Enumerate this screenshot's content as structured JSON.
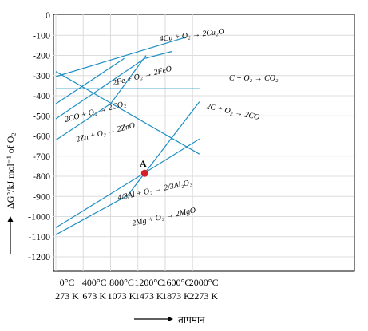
{
  "chart_data": {
    "type": "line",
    "title": "",
    "ylabel": "ΔG°/kJ mol⁻¹ of O₂",
    "xlabel": "तापमान",
    "ylim": [
      -1300,
      0
    ],
    "y_ticks": [
      0,
      -100,
      -200,
      -300,
      -400,
      -500,
      -600,
      -700,
      -800,
      -900,
      -1000,
      -1100,
      -1200
    ],
    "xlim": [
      0,
      2100
    ],
    "x_ticks": [
      {
        "x": 0,
        "celsius": "0°C",
        "kelvin": "273 K"
      },
      {
        "x": 400,
        "celsius": "400°C",
        "kelvin": "673 K"
      },
      {
        "x": 800,
        "celsius": "800°C",
        "kelvin": "1073 K"
      },
      {
        "x": 1200,
        "celsius": "1200°C",
        "kelvin": "1473 K"
      },
      {
        "x": 1600,
        "celsius": "1600°C",
        "kelvin": "1873 K"
      },
      {
        "x": 2000,
        "celsius": "2000°C",
        "kelvin": "2273 K"
      }
    ],
    "grid": true,
    "series": [
      {
        "name": "4Cu + O₂ → 2Cu₂O",
        "points": [
          [
            0,
            -305
          ],
          [
            1900,
            -110
          ]
        ]
      },
      {
        "name": "2Fe + O₂ → 2FeO",
        "points": [
          [
            0,
            -440
          ],
          [
            1000,
            -215
          ]
        ]
      },
      {
        "name": "C + O₂ → CO₂",
        "points": [
          [
            0,
            -365
          ],
          [
            2100,
            -365
          ]
        ]
      },
      {
        "name": "2CO + O₂ → 2CO₂",
        "points": [
          [
            0,
            -515
          ],
          [
            1300,
            -215
          ],
          [
            1700,
            -180
          ]
        ]
      },
      {
        "name": "2C + O₂ → 2CO",
        "points": [
          [
            0,
            -280
          ],
          [
            2100,
            -690
          ]
        ]
      },
      {
        "name": "2Zn + O₂ → 2ZnO",
        "points": [
          [
            0,
            -620
          ],
          [
            800,
            -440
          ],
          [
            1320,
            -200
          ]
        ]
      },
      {
        "name": "4/3Al + O₂ → 2/3Al₂O₃",
        "points": [
          [
            0,
            -1055
          ],
          [
            2100,
            -615
          ]
        ]
      },
      {
        "name": "2Mg + O₂ → 2MgO",
        "points": [
          [
            0,
            -1090
          ],
          [
            1050,
            -895
          ],
          [
            2100,
            -430
          ]
        ]
      }
    ],
    "annotations": [
      {
        "label": "A",
        "x": 1300,
        "y": -785
      }
    ]
  }
}
